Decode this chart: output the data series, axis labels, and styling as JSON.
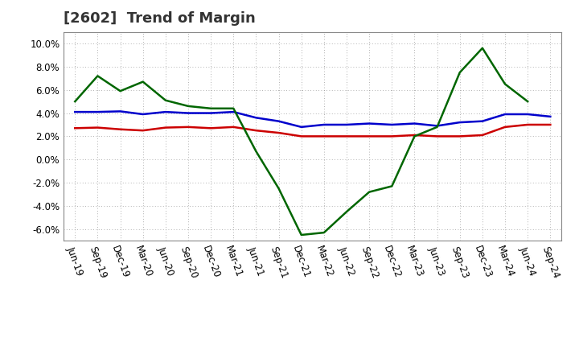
{
  "title": "[2602]  Trend of Margin",
  "x_labels": [
    "Jun-19",
    "Sep-19",
    "Dec-19",
    "Mar-20",
    "Jun-20",
    "Sep-20",
    "Dec-20",
    "Mar-21",
    "Jun-21",
    "Sep-21",
    "Dec-21",
    "Mar-22",
    "Jun-22",
    "Sep-22",
    "Dec-22",
    "Mar-23",
    "Jun-23",
    "Sep-23",
    "Dec-23",
    "Mar-24",
    "Jun-24",
    "Sep-24"
  ],
  "ordinary_income": [
    4.1,
    4.1,
    4.15,
    3.9,
    4.1,
    4.0,
    4.0,
    4.1,
    3.6,
    3.3,
    2.8,
    3.0,
    3.0,
    3.1,
    3.0,
    3.1,
    2.9,
    3.2,
    3.3,
    3.9,
    3.9,
    3.7
  ],
  "net_income": [
    2.7,
    2.75,
    2.6,
    2.5,
    2.75,
    2.8,
    2.7,
    2.8,
    2.5,
    2.3,
    2.0,
    2.0,
    2.0,
    2.0,
    2.0,
    2.1,
    2.0,
    2.0,
    2.1,
    2.8,
    3.0,
    3.0
  ],
  "operating_cashflow": [
    5.0,
    7.2,
    5.9,
    6.7,
    5.1,
    4.6,
    4.4,
    4.4,
    0.7,
    -2.5,
    -6.5,
    -6.3,
    -4.5,
    -2.8,
    -2.3,
    2.0,
    2.8,
    7.5,
    9.6,
    6.5,
    5.0,
    null
  ],
  "ylim": [
    -7.0,
    11.0
  ],
  "yticks": [
    -6.0,
    -4.0,
    -2.0,
    0.0,
    2.0,
    4.0,
    6.0,
    8.0,
    10.0
  ],
  "colors": {
    "ordinary_income": "#0000cc",
    "net_income": "#cc0000",
    "operating_cashflow": "#006600",
    "background": "#ffffff",
    "grid": "#999999"
  },
  "title_fontsize": 13,
  "tick_fontsize": 8.5,
  "legend_fontsize": 9
}
